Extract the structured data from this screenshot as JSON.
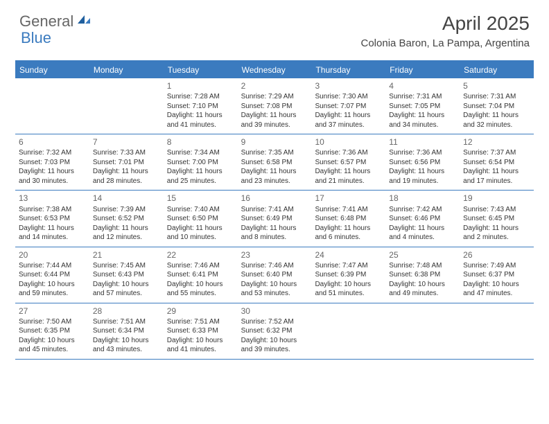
{
  "brand": {
    "part1": "General",
    "part2": "Blue"
  },
  "title": "April 2025",
  "location": "Colonia Baron, La Pampa, Argentina",
  "header_bg": "#3b7bbf",
  "day_names": [
    "Sunday",
    "Monday",
    "Tuesday",
    "Wednesday",
    "Thursday",
    "Friday",
    "Saturday"
  ],
  "weeks": [
    [
      null,
      null,
      {
        "n": "1",
        "sr": "7:28 AM",
        "ss": "7:10 PM",
        "dl": "11 hours and 41 minutes."
      },
      {
        "n": "2",
        "sr": "7:29 AM",
        "ss": "7:08 PM",
        "dl": "11 hours and 39 minutes."
      },
      {
        "n": "3",
        "sr": "7:30 AM",
        "ss": "7:07 PM",
        "dl": "11 hours and 37 minutes."
      },
      {
        "n": "4",
        "sr": "7:31 AM",
        "ss": "7:05 PM",
        "dl": "11 hours and 34 minutes."
      },
      {
        "n": "5",
        "sr": "7:31 AM",
        "ss": "7:04 PM",
        "dl": "11 hours and 32 minutes."
      }
    ],
    [
      {
        "n": "6",
        "sr": "7:32 AM",
        "ss": "7:03 PM",
        "dl": "11 hours and 30 minutes."
      },
      {
        "n": "7",
        "sr": "7:33 AM",
        "ss": "7:01 PM",
        "dl": "11 hours and 28 minutes."
      },
      {
        "n": "8",
        "sr": "7:34 AM",
        "ss": "7:00 PM",
        "dl": "11 hours and 25 minutes."
      },
      {
        "n": "9",
        "sr": "7:35 AM",
        "ss": "6:58 PM",
        "dl": "11 hours and 23 minutes."
      },
      {
        "n": "10",
        "sr": "7:36 AM",
        "ss": "6:57 PM",
        "dl": "11 hours and 21 minutes."
      },
      {
        "n": "11",
        "sr": "7:36 AM",
        "ss": "6:56 PM",
        "dl": "11 hours and 19 minutes."
      },
      {
        "n": "12",
        "sr": "7:37 AM",
        "ss": "6:54 PM",
        "dl": "11 hours and 17 minutes."
      }
    ],
    [
      {
        "n": "13",
        "sr": "7:38 AM",
        "ss": "6:53 PM",
        "dl": "11 hours and 14 minutes."
      },
      {
        "n": "14",
        "sr": "7:39 AM",
        "ss": "6:52 PM",
        "dl": "11 hours and 12 minutes."
      },
      {
        "n": "15",
        "sr": "7:40 AM",
        "ss": "6:50 PM",
        "dl": "11 hours and 10 minutes."
      },
      {
        "n": "16",
        "sr": "7:41 AM",
        "ss": "6:49 PM",
        "dl": "11 hours and 8 minutes."
      },
      {
        "n": "17",
        "sr": "7:41 AM",
        "ss": "6:48 PM",
        "dl": "11 hours and 6 minutes."
      },
      {
        "n": "18",
        "sr": "7:42 AM",
        "ss": "6:46 PM",
        "dl": "11 hours and 4 minutes."
      },
      {
        "n": "19",
        "sr": "7:43 AM",
        "ss": "6:45 PM",
        "dl": "11 hours and 2 minutes."
      }
    ],
    [
      {
        "n": "20",
        "sr": "7:44 AM",
        "ss": "6:44 PM",
        "dl": "10 hours and 59 minutes."
      },
      {
        "n": "21",
        "sr": "7:45 AM",
        "ss": "6:43 PM",
        "dl": "10 hours and 57 minutes."
      },
      {
        "n": "22",
        "sr": "7:46 AM",
        "ss": "6:41 PM",
        "dl": "10 hours and 55 minutes."
      },
      {
        "n": "23",
        "sr": "7:46 AM",
        "ss": "6:40 PM",
        "dl": "10 hours and 53 minutes."
      },
      {
        "n": "24",
        "sr": "7:47 AM",
        "ss": "6:39 PM",
        "dl": "10 hours and 51 minutes."
      },
      {
        "n": "25",
        "sr": "7:48 AM",
        "ss": "6:38 PM",
        "dl": "10 hours and 49 minutes."
      },
      {
        "n": "26",
        "sr": "7:49 AM",
        "ss": "6:37 PM",
        "dl": "10 hours and 47 minutes."
      }
    ],
    [
      {
        "n": "27",
        "sr": "7:50 AM",
        "ss": "6:35 PM",
        "dl": "10 hours and 45 minutes."
      },
      {
        "n": "28",
        "sr": "7:51 AM",
        "ss": "6:34 PM",
        "dl": "10 hours and 43 minutes."
      },
      {
        "n": "29",
        "sr": "7:51 AM",
        "ss": "6:33 PM",
        "dl": "10 hours and 41 minutes."
      },
      {
        "n": "30",
        "sr": "7:52 AM",
        "ss": "6:32 PM",
        "dl": "10 hours and 39 minutes."
      },
      null,
      null,
      null
    ]
  ],
  "labels": {
    "sunrise": "Sunrise:",
    "sunset": "Sunset:",
    "daylight": "Daylight:"
  }
}
